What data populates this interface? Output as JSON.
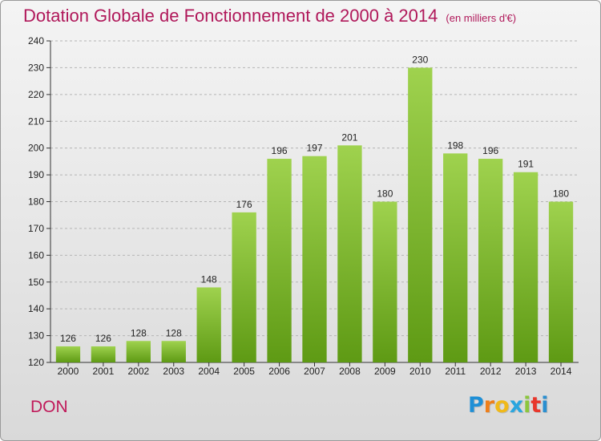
{
  "header": {
    "title": "Dotation Globale de Fonctionnement de 2000 à 2014",
    "subtitle": "(en milliers d'€)"
  },
  "footer": {
    "place": "DON",
    "logo_letters": [
      "P",
      "r",
      "o",
      "x",
      "i",
      "t",
      "i"
    ],
    "logo_colors": [
      "#1e8fd6",
      "#ee7f1a",
      "#f0b91a",
      "#2aa6df",
      "#8cc63e",
      "#e8372c",
      "#2b8fd0"
    ]
  },
  "colors": {
    "bar_top": "#9fd24e",
    "bar_bottom": "#5e9a14",
    "title": "#b0185a"
  },
  "chart_data": {
    "type": "bar",
    "categories": [
      "2000",
      "2001",
      "2002",
      "2003",
      "2004",
      "2005",
      "2006",
      "2007",
      "2008",
      "2009",
      "2010",
      "2011",
      "2012",
      "2013",
      "2014"
    ],
    "values": [
      126,
      126,
      128,
      128,
      148,
      176,
      196,
      197,
      201,
      180,
      230,
      198,
      196,
      191,
      180
    ],
    "ylim": [
      120,
      240
    ],
    "yticks": [
      120,
      130,
      140,
      150,
      160,
      170,
      180,
      190,
      200,
      210,
      220,
      230,
      240
    ],
    "grid": true,
    "grid_style": "dashed",
    "legend": "none"
  }
}
